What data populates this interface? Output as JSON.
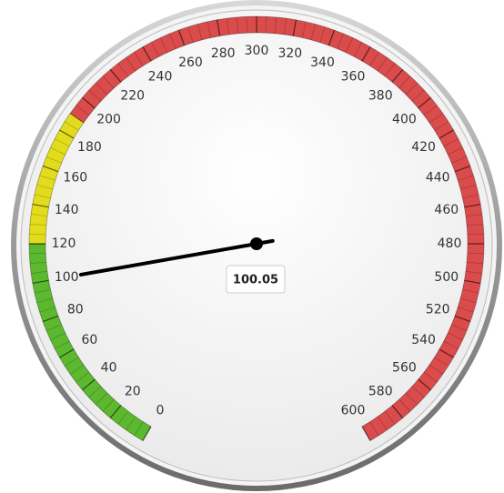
{
  "chart_data": {
    "type": "gauge",
    "value": 100.05,
    "ylim": [
      0,
      600
    ],
    "yticks": [
      0,
      20,
      40,
      60,
      80,
      100,
      120,
      140,
      160,
      180,
      200,
      220,
      240,
      260,
      280,
      300,
      320,
      340,
      360,
      380,
      400,
      420,
      440,
      460,
      480,
      500,
      520,
      540,
      560,
      580,
      600
    ],
    "bands": [
      {
        "from": 0,
        "to": 120,
        "color": "#5cb82e"
      },
      {
        "from": 120,
        "to": 190,
        "color": "#e2dc1c"
      },
      {
        "from": 190,
        "to": 600,
        "color": "#da4b4b"
      }
    ]
  }
}
